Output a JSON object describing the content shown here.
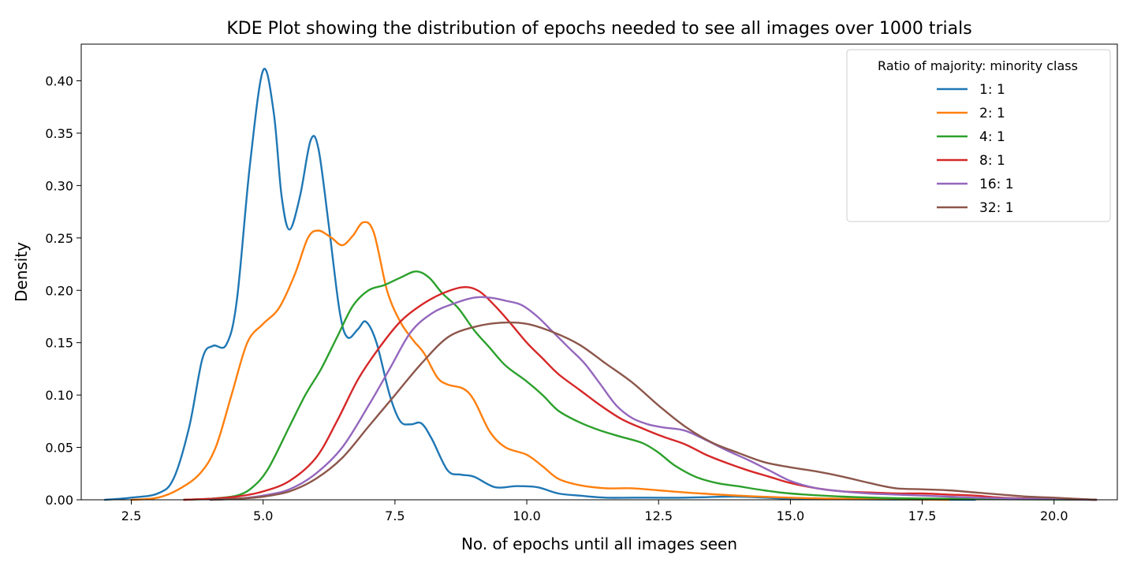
{
  "chart_data": {
    "type": "line",
    "title": "KDE Plot showing the distribution of epochs needed to see all images over 1000 trials",
    "xlabel": "No. of epochs until all images seen",
    "ylabel": "Density",
    "xlim": [
      1.55,
      21.2
    ],
    "ylim": [
      0,
      0.435
    ],
    "x_ticks": [
      2.5,
      5.0,
      7.5,
      10.0,
      12.5,
      15.0,
      17.5,
      20.0
    ],
    "x_tick_labels": [
      "2.5",
      "5.0",
      "7.5",
      "10.0",
      "12.5",
      "15.0",
      "17.5",
      "20.0"
    ],
    "y_ticks": [
      0.0,
      0.05,
      0.1,
      0.15,
      0.2,
      0.25,
      0.3,
      0.35,
      0.4
    ],
    "y_tick_labels": [
      "0.00",
      "0.05",
      "0.10",
      "0.15",
      "0.20",
      "0.25",
      "0.30",
      "0.35",
      "0.40"
    ],
    "grid": false,
    "legend": {
      "title": "Ratio of majority: minority class",
      "placement": "top-right"
    },
    "series": [
      {
        "name": "1: 1",
        "color": "#1f77b4",
        "points": [
          [
            2.0,
            0
          ],
          [
            2.5,
            0.002
          ],
          [
            3.0,
            0.006
          ],
          [
            3.3,
            0.02
          ],
          [
            3.6,
            0.07
          ],
          [
            3.85,
            0.135
          ],
          [
            4.05,
            0.147
          ],
          [
            4.3,
            0.148
          ],
          [
            4.5,
            0.19
          ],
          [
            4.75,
            0.32
          ],
          [
            5.0,
            0.41
          ],
          [
            5.2,
            0.37
          ],
          [
            5.35,
            0.29
          ],
          [
            5.5,
            0.258
          ],
          [
            5.7,
            0.29
          ],
          [
            5.9,
            0.343
          ],
          [
            6.05,
            0.335
          ],
          [
            6.25,
            0.26
          ],
          [
            6.45,
            0.18
          ],
          [
            6.6,
            0.155
          ],
          [
            6.8,
            0.163
          ],
          [
            6.95,
            0.17
          ],
          [
            7.15,
            0.15
          ],
          [
            7.4,
            0.1
          ],
          [
            7.6,
            0.075
          ],
          [
            7.8,
            0.072
          ],
          [
            8.0,
            0.073
          ],
          [
            8.2,
            0.058
          ],
          [
            8.5,
            0.028
          ],
          [
            8.75,
            0.024
          ],
          [
            9.0,
            0.022
          ],
          [
            9.4,
            0.012
          ],
          [
            9.8,
            0.013
          ],
          [
            10.2,
            0.012
          ],
          [
            10.6,
            0.006
          ],
          [
            11.0,
            0.004
          ],
          [
            11.5,
            0.002
          ],
          [
            12.0,
            0.002
          ],
          [
            13.0,
            0.002
          ],
          [
            14.0,
            0.003
          ],
          [
            15.0,
            0.001
          ],
          [
            16.0,
            0.0005
          ],
          [
            17.0,
            0.0002
          ],
          [
            18.5,
            0
          ]
        ]
      },
      {
        "name": "2: 1",
        "color": "#ff7f0e",
        "points": [
          [
            2.5,
            0
          ],
          [
            3.0,
            0.002
          ],
          [
            3.4,
            0.01
          ],
          [
            3.8,
            0.025
          ],
          [
            4.1,
            0.05
          ],
          [
            4.4,
            0.1
          ],
          [
            4.7,
            0.15
          ],
          [
            5.0,
            0.168
          ],
          [
            5.3,
            0.183
          ],
          [
            5.6,
            0.215
          ],
          [
            5.85,
            0.25
          ],
          [
            6.05,
            0.257
          ],
          [
            6.3,
            0.25
          ],
          [
            6.5,
            0.243
          ],
          [
            6.7,
            0.252
          ],
          [
            6.9,
            0.265
          ],
          [
            7.1,
            0.255
          ],
          [
            7.35,
            0.2
          ],
          [
            7.6,
            0.17
          ],
          [
            7.85,
            0.152
          ],
          [
            8.05,
            0.14
          ],
          [
            8.3,
            0.117
          ],
          [
            8.5,
            0.11
          ],
          [
            8.8,
            0.106
          ],
          [
            9.0,
            0.095
          ],
          [
            9.3,
            0.065
          ],
          [
            9.6,
            0.05
          ],
          [
            10.0,
            0.043
          ],
          [
            10.3,
            0.032
          ],
          [
            10.6,
            0.02
          ],
          [
            11.0,
            0.014
          ],
          [
            11.5,
            0.011
          ],
          [
            12.0,
            0.011
          ],
          [
            12.5,
            0.009
          ],
          [
            13.0,
            0.007
          ],
          [
            14.0,
            0.004
          ],
          [
            15.0,
            0.002
          ],
          [
            16.0,
            0.001
          ],
          [
            17.0,
            0.0005
          ],
          [
            18.0,
            0
          ]
        ]
      },
      {
        "name": "4: 1",
        "color": "#2ca02c",
        "points": [
          [
            3.5,
            0
          ],
          [
            4.0,
            0.001
          ],
          [
            4.5,
            0.004
          ],
          [
            4.8,
            0.012
          ],
          [
            5.1,
            0.03
          ],
          [
            5.5,
            0.07
          ],
          [
            5.8,
            0.1
          ],
          [
            6.1,
            0.125
          ],
          [
            6.4,
            0.155
          ],
          [
            6.7,
            0.185
          ],
          [
            7.0,
            0.2
          ],
          [
            7.3,
            0.205
          ],
          [
            7.6,
            0.212
          ],
          [
            7.9,
            0.218
          ],
          [
            8.15,
            0.212
          ],
          [
            8.4,
            0.197
          ],
          [
            8.7,
            0.183
          ],
          [
            9.0,
            0.162
          ],
          [
            9.3,
            0.145
          ],
          [
            9.6,
            0.128
          ],
          [
            10.0,
            0.113
          ],
          [
            10.3,
            0.1
          ],
          [
            10.6,
            0.085
          ],
          [
            11.0,
            0.074
          ],
          [
            11.4,
            0.066
          ],
          [
            11.8,
            0.06
          ],
          [
            12.2,
            0.054
          ],
          [
            12.5,
            0.045
          ],
          [
            12.8,
            0.033
          ],
          [
            13.2,
            0.022
          ],
          [
            13.6,
            0.016
          ],
          [
            14.0,
            0.013
          ],
          [
            14.5,
            0.009
          ],
          [
            15.0,
            0.006
          ],
          [
            16.0,
            0.003
          ],
          [
            17.0,
            0.0015
          ],
          [
            18.0,
            0.001
          ],
          [
            19.0,
            0.0005
          ],
          [
            20.0,
            0.0002
          ],
          [
            20.8,
            0
          ]
        ]
      },
      {
        "name": "8: 1",
        "color": "#d62728",
        "points": [
          [
            3.5,
            0
          ],
          [
            4.0,
            0.001
          ],
          [
            4.5,
            0.003
          ],
          [
            5.0,
            0.008
          ],
          [
            5.5,
            0.018
          ],
          [
            6.0,
            0.04
          ],
          [
            6.4,
            0.075
          ],
          [
            6.8,
            0.115
          ],
          [
            7.2,
            0.145
          ],
          [
            7.6,
            0.17
          ],
          [
            8.0,
            0.186
          ],
          [
            8.4,
            0.197
          ],
          [
            8.8,
            0.203
          ],
          [
            9.1,
            0.199
          ],
          [
            9.4,
            0.185
          ],
          [
            9.7,
            0.168
          ],
          [
            10.0,
            0.15
          ],
          [
            10.3,
            0.135
          ],
          [
            10.6,
            0.12
          ],
          [
            11.0,
            0.105
          ],
          [
            11.4,
            0.09
          ],
          [
            11.8,
            0.077
          ],
          [
            12.2,
            0.068
          ],
          [
            12.6,
            0.06
          ],
          [
            13.0,
            0.053
          ],
          [
            13.4,
            0.043
          ],
          [
            13.8,
            0.035
          ],
          [
            14.2,
            0.028
          ],
          [
            14.6,
            0.022
          ],
          [
            15.0,
            0.016
          ],
          [
            15.5,
            0.011
          ],
          [
            16.0,
            0.008
          ],
          [
            16.5,
            0.007
          ],
          [
            17.0,
            0.006
          ],
          [
            17.5,
            0.006
          ],
          [
            18.0,
            0.005
          ],
          [
            18.5,
            0.004
          ],
          [
            19.0,
            0.002
          ],
          [
            20.0,
            0.0008
          ],
          [
            20.8,
            0
          ]
        ]
      },
      {
        "name": "16: 1",
        "color": "#9467bd",
        "points": [
          [
            4.0,
            0
          ],
          [
            4.5,
            0.001
          ],
          [
            5.0,
            0.004
          ],
          [
            5.5,
            0.01
          ],
          [
            6.0,
            0.025
          ],
          [
            6.5,
            0.05
          ],
          [
            7.0,
            0.09
          ],
          [
            7.4,
            0.125
          ],
          [
            7.8,
            0.16
          ],
          [
            8.2,
            0.178
          ],
          [
            8.6,
            0.187
          ],
          [
            9.0,
            0.193
          ],
          [
            9.3,
            0.193
          ],
          [
            9.6,
            0.19
          ],
          [
            9.9,
            0.186
          ],
          [
            10.2,
            0.175
          ],
          [
            10.5,
            0.16
          ],
          [
            10.8,
            0.145
          ],
          [
            11.1,
            0.13
          ],
          [
            11.4,
            0.11
          ],
          [
            11.7,
            0.09
          ],
          [
            12.0,
            0.078
          ],
          [
            12.3,
            0.072
          ],
          [
            12.6,
            0.069
          ],
          [
            13.0,
            0.066
          ],
          [
            13.4,
            0.057
          ],
          [
            13.8,
            0.047
          ],
          [
            14.2,
            0.038
          ],
          [
            14.6,
            0.028
          ],
          [
            15.0,
            0.018
          ],
          [
            15.5,
            0.011
          ],
          [
            16.0,
            0.008
          ],
          [
            16.5,
            0.006
          ],
          [
            17.0,
            0.005
          ],
          [
            17.5,
            0.004
          ],
          [
            18.0,
            0.003
          ],
          [
            18.5,
            0.002
          ],
          [
            19.5,
            0.001
          ],
          [
            20.8,
            0
          ]
        ]
      },
      {
        "name": "32: 1",
        "color": "#8c564b",
        "points": [
          [
            4.0,
            0
          ],
          [
            4.5,
            0.001
          ],
          [
            5.0,
            0.003
          ],
          [
            5.5,
            0.008
          ],
          [
            6.0,
            0.02
          ],
          [
            6.5,
            0.04
          ],
          [
            7.0,
            0.07
          ],
          [
            7.5,
            0.1
          ],
          [
            8.0,
            0.13
          ],
          [
            8.5,
            0.155
          ],
          [
            9.0,
            0.165
          ],
          [
            9.5,
            0.169
          ],
          [
            10.0,
            0.168
          ],
          [
            10.5,
            0.16
          ],
          [
            11.0,
            0.148
          ],
          [
            11.5,
            0.13
          ],
          [
            12.0,
            0.112
          ],
          [
            12.5,
            0.09
          ],
          [
            13.0,
            0.07
          ],
          [
            13.5,
            0.055
          ],
          [
            14.0,
            0.045
          ],
          [
            14.5,
            0.036
          ],
          [
            15.0,
            0.031
          ],
          [
            15.5,
            0.027
          ],
          [
            16.0,
            0.022
          ],
          [
            16.5,
            0.016
          ],
          [
            17.0,
            0.011
          ],
          [
            17.5,
            0.01
          ],
          [
            18.0,
            0.009
          ],
          [
            18.5,
            0.007
          ],
          [
            19.0,
            0.005
          ],
          [
            19.5,
            0.003
          ],
          [
            20.0,
            0.002
          ],
          [
            20.8,
            0
          ]
        ]
      }
    ]
  }
}
